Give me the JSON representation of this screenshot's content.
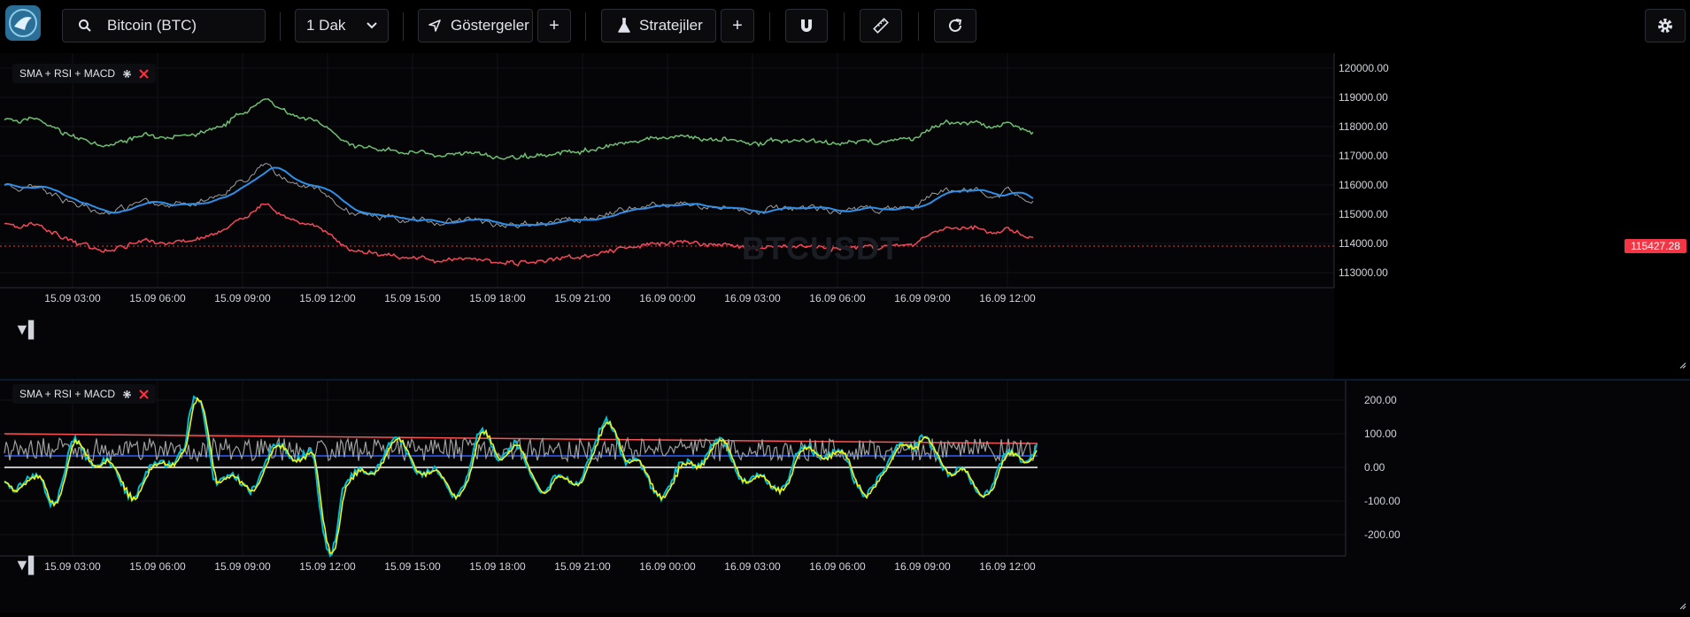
{
  "toolbar": {
    "symbol_search_value": "Bitcoin (BTC)",
    "interval_label": "1 Dak",
    "indicators_label": "Göstergeler",
    "add_label": "+",
    "strategies_label": "Stratejiler",
    "add_strategy_label": "+"
  },
  "watermark": "BTCUSDT",
  "main_pane": {
    "legend_label": "SMA + RSI + MACD",
    "current_price_tag": "115427.28",
    "price_axis_ticks": [
      "120000.00",
      "119000.00",
      "118000.00",
      "117000.00",
      "116000.00",
      "115000.00",
      "114000.00",
      "113000.00"
    ],
    "time_axis_ticks": [
      "15.09 03:00",
      "15.09 06:00",
      "15.09 09:00",
      "15.09 12:00",
      "15.09 15:00",
      "15.09 18:00",
      "15.09 21:00",
      "16.09 00:00",
      "16.09 03:00",
      "16.09 06:00",
      "16.09 09:00",
      "16.09 12:00"
    ]
  },
  "lower_pane": {
    "legend_label": "SMA + RSI + MACD",
    "value_axis_ticks": [
      "200.00",
      "100.00",
      "0.00",
      "-100.00",
      "-200.00"
    ],
    "time_axis_ticks": [
      "15.09 03:00",
      "15.09 06:00",
      "15.09 09:00",
      "15.09 12:00",
      "15.09 15:00",
      "15.09 18:00",
      "15.09 21:00",
      "16.09 00:00",
      "16.09 03:00",
      "16.09 06:00",
      "16.09 09:00",
      "16.09 12:00"
    ]
  },
  "colors": {
    "upper_band": "#6fbf73",
    "lower_band": "#f2495a",
    "sma": "#2f8fe8",
    "price": "#9e9e9e",
    "rsi": "#9e9e9e",
    "macd": "#00bcd4",
    "signal": "#f4f40a",
    "level_high": "#ff5252",
    "level_mid": "#2962ff",
    "level_zero": "#ffffff"
  }
}
